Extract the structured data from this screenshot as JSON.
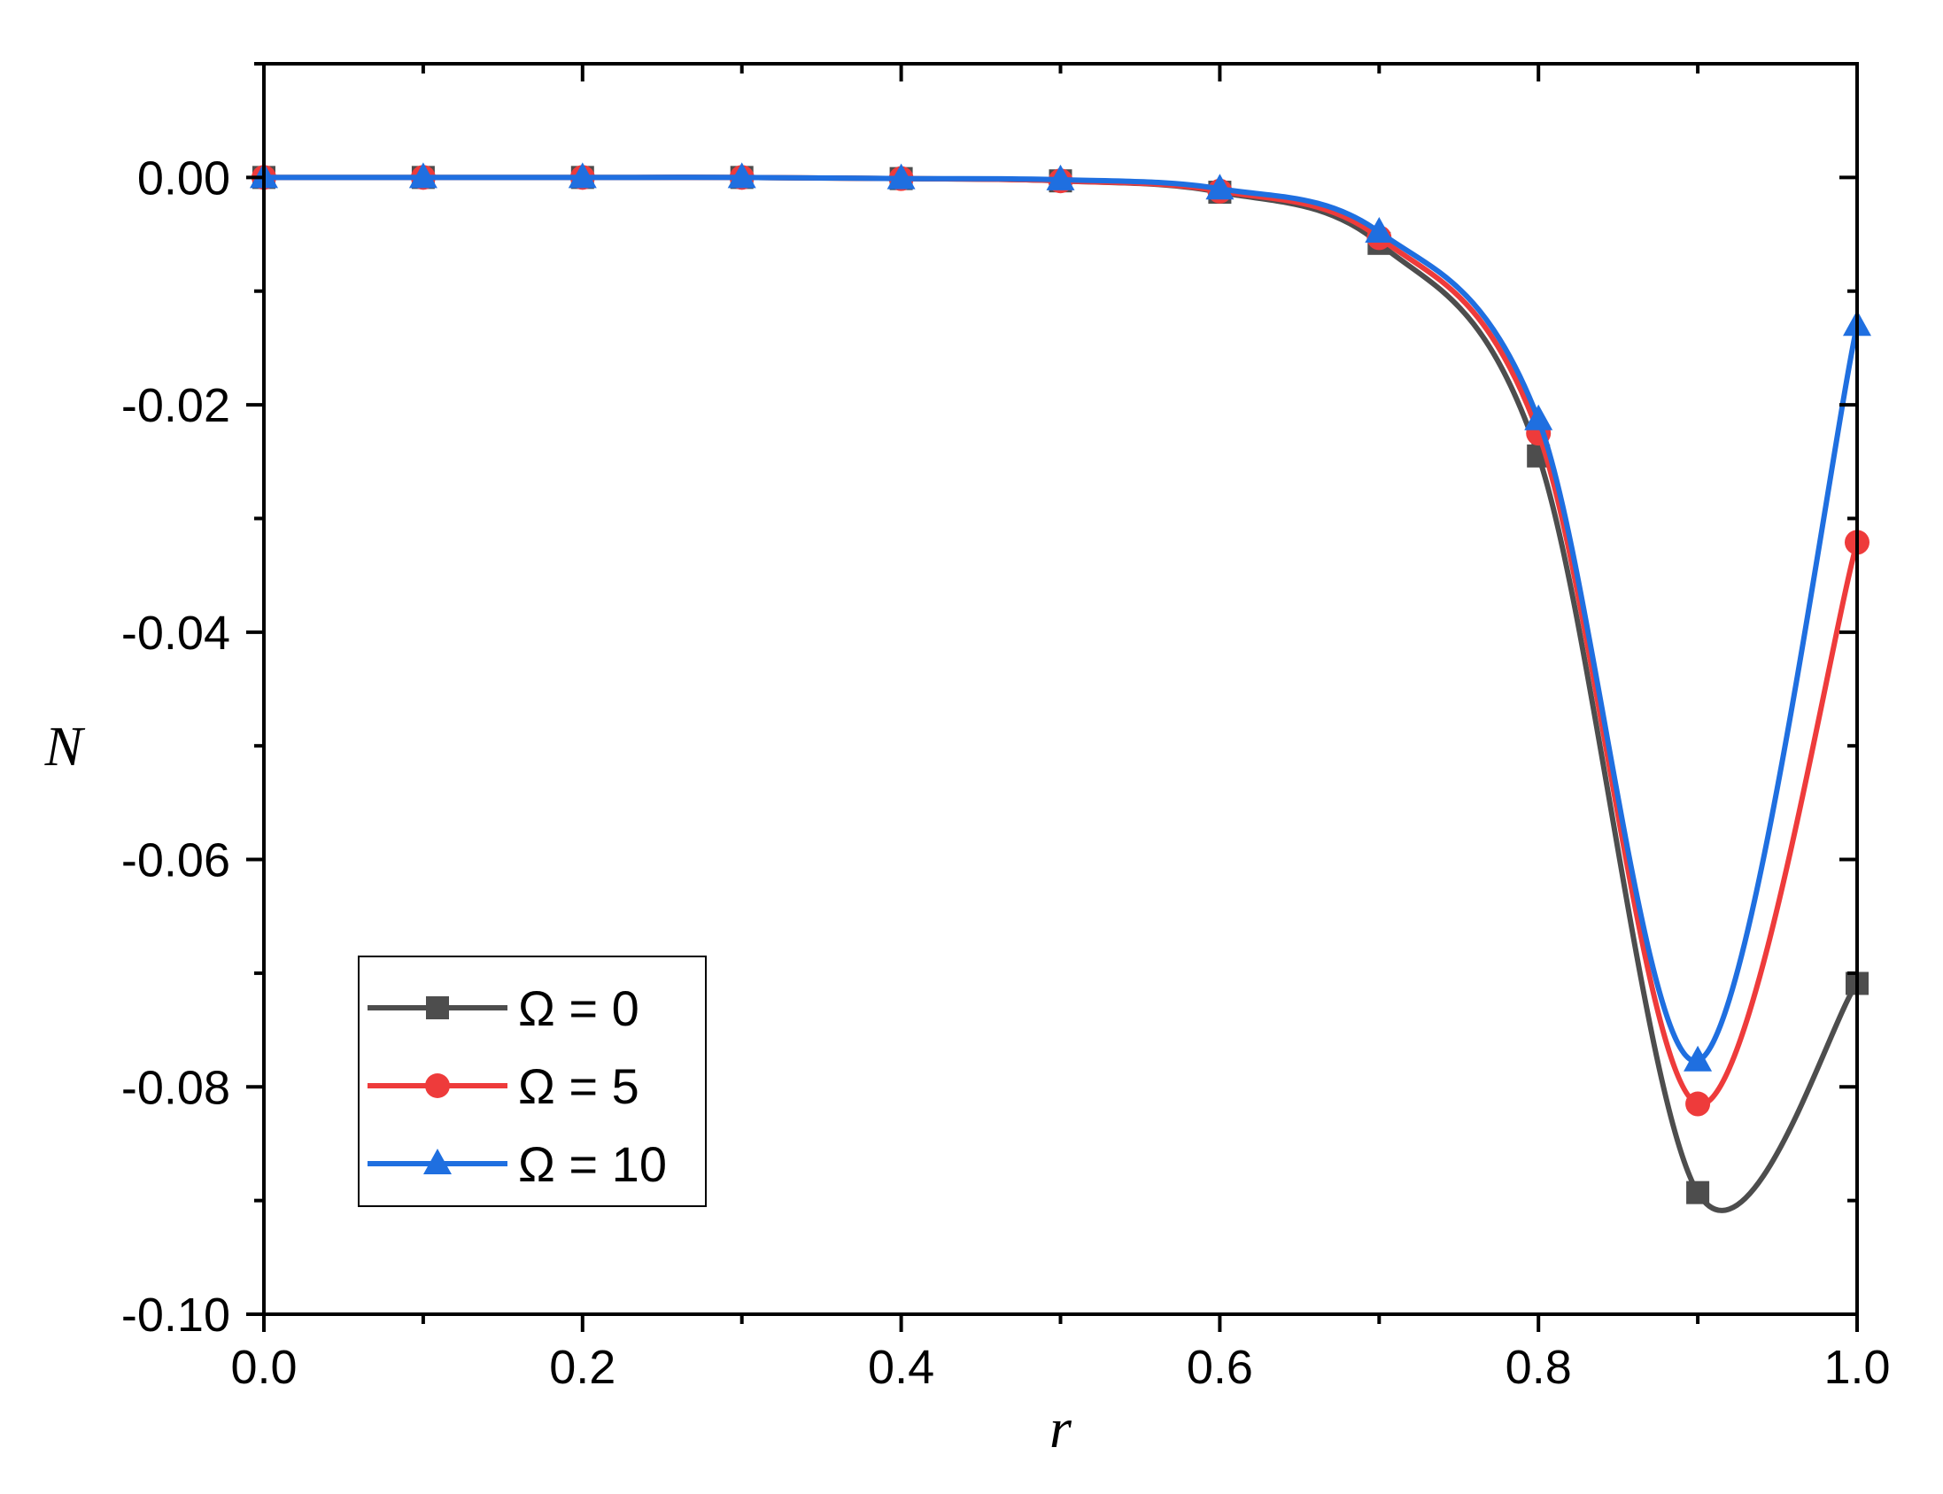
{
  "chart_data": {
    "type": "line",
    "xlabel": "r",
    "ylabel": "N",
    "xlim": [
      0.0,
      1.0
    ],
    "ylim": [
      -0.1,
      0.01
    ],
    "x_ticks": [
      "0.0",
      "0.2",
      "0.4",
      "0.6",
      "0.8",
      "1.0"
    ],
    "y_ticks": [
      "0.00",
      "-0.02",
      "-0.04",
      "-0.06",
      "-0.08",
      "-0.10"
    ],
    "grid": false,
    "legend_position": "bottom-left",
    "x": [
      0.0,
      0.1,
      0.2,
      0.3,
      0.4,
      0.5,
      0.6,
      0.7,
      0.8,
      0.9,
      1.0
    ],
    "series": [
      {
        "name": "Ω = 0",
        "color": "#4d4d4d",
        "marker": "square",
        "values": [
          0.0,
          0.0,
          0.0,
          0.0,
          -0.0001,
          -0.0003,
          -0.0013,
          -0.0058,
          -0.0245,
          -0.0893,
          -0.0709
        ]
      },
      {
        "name": "Ω = 5",
        "color": "#ee3b3b",
        "marker": "circle",
        "values": [
          0.0,
          0.0,
          0.0,
          0.0,
          -0.0001,
          -0.0003,
          -0.0012,
          -0.0053,
          -0.0225,
          -0.0815,
          -0.0321
        ]
      },
      {
        "name": "Ω = 10",
        "color": "#1f6fe0",
        "marker": "triangle",
        "values": [
          0.0,
          0.0,
          0.0,
          0.0,
          -0.0001,
          -0.0002,
          -0.001,
          -0.0048,
          -0.0213,
          -0.0777,
          -0.013
        ]
      }
    ]
  }
}
